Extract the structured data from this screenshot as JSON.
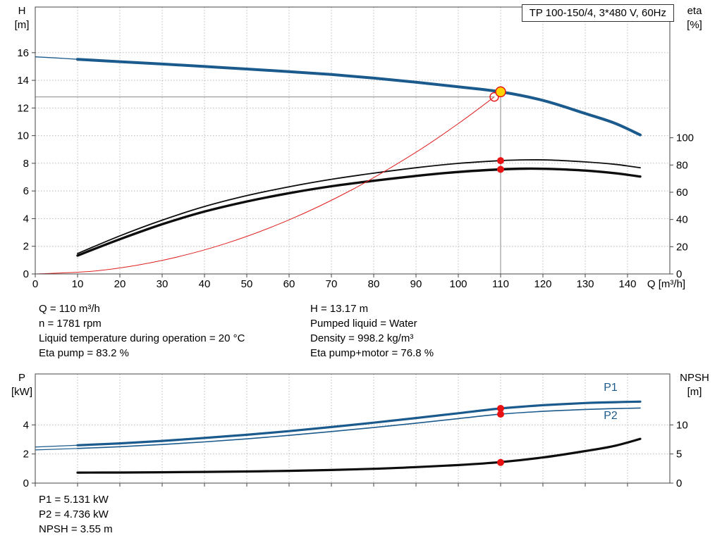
{
  "header": {
    "title": "TP 100-150/4, 3*480 V, 60Hz"
  },
  "annotations": {
    "top_left": [
      "Q = 110 m³/h",
      "n = 1781 rpm",
      "Liquid temperature during operation = 20 °C",
      "Eta pump = 83.2 %"
    ],
    "top_right": [
      "H = 13.17 m",
      "Pumped liquid = Water",
      "Density = 998.2 kg/m³",
      "Eta pump+motor = 76.8 %"
    ],
    "bottom": [
      "P1 = 5.131 kW",
      "P2 = 4.736 kW",
      "NPSH = 3.55 m"
    ]
  },
  "colors": {
    "blue": "#1b5a8c",
    "black": "#0d0d0d",
    "red": "#e02020",
    "marker_red": "#e81212",
    "marker_yellow": "#ffd400",
    "grid": "#b9b9b9",
    "axis": "#444444",
    "ref_line": "#8a8a8a"
  },
  "chart_data": [
    {
      "type": "line",
      "name": "qh-eta-chart",
      "x_axis": {
        "label": "Q [m³/h]",
        "range": [
          0,
          150
        ],
        "ticks": [
          0,
          10,
          20,
          30,
          40,
          50,
          60,
          70,
          80,
          90,
          100,
          110,
          120,
          130,
          140
        ],
        "show_labels": true
      },
      "y_left": {
        "label": "H",
        "unit": "[m]",
        "range": [
          0,
          19.3
        ],
        "ticks": [
          0,
          2,
          4,
          6,
          8,
          10,
          12,
          14,
          16
        ]
      },
      "y_right": {
        "label": "eta",
        "unit": "[%]",
        "range": [
          0,
          196
        ],
        "ticks": [
          0,
          20,
          40,
          60,
          80,
          100
        ]
      },
      "series": [
        {
          "name": "qh-curve-lead",
          "axis": "left",
          "color": "blue",
          "width": 1.3,
          "points": [
            [
              0,
              15.7
            ],
            [
              5,
              15.62
            ],
            [
              10,
              15.52
            ]
          ]
        },
        {
          "name": "qh-curve",
          "axis": "left",
          "color": "blue",
          "width": 4,
          "points": [
            [
              10,
              15.52
            ],
            [
              20,
              15.35
            ],
            [
              30,
              15.18
            ],
            [
              40,
              15.0
            ],
            [
              50,
              14.82
            ],
            [
              60,
              14.63
            ],
            [
              70,
              14.42
            ],
            [
              80,
              14.16
            ],
            [
              90,
              13.86
            ],
            [
              100,
              13.53
            ],
            [
              110,
              13.17
            ],
            [
              120,
              12.55
            ],
            [
              130,
              11.6
            ],
            [
              137,
              10.9
            ],
            [
              143,
              10.05
            ]
          ]
        },
        {
          "name": "eta-pump-curve",
          "axis": "right",
          "color": "black",
          "width": 1.8,
          "points": [
            [
              10,
              15
            ],
            [
              20,
              28
            ],
            [
              30,
              39.5
            ],
            [
              40,
              49.5
            ],
            [
              50,
              57.5
            ],
            [
              60,
              64
            ],
            [
              70,
              69.5
            ],
            [
              80,
              74
            ],
            [
              90,
              78
            ],
            [
              100,
              81.2
            ],
            [
              110,
              83.2
            ],
            [
              116,
              83.8
            ],
            [
              122,
              83.6
            ],
            [
              130,
              82.3
            ],
            [
              137,
              80.5
            ],
            [
              143,
              78
            ]
          ]
        },
        {
          "name": "eta-pump-motor-curve",
          "axis": "right",
          "color": "black",
          "width": 3.4,
          "points": [
            [
              10,
              13.5
            ],
            [
              20,
              25.5
            ],
            [
              30,
              36.5
            ],
            [
              40,
              45.8
            ],
            [
              50,
              53.2
            ],
            [
              60,
              59.3
            ],
            [
              70,
              64.4
            ],
            [
              80,
              68.4
            ],
            [
              90,
              72
            ],
            [
              100,
              74.9
            ],
            [
              110,
              76.8
            ],
            [
              116,
              77.3
            ],
            [
              122,
              77.1
            ],
            [
              130,
              75.9
            ],
            [
              137,
              74
            ],
            [
              143,
              71.5
            ]
          ]
        },
        {
          "name": "system-resistance-curve",
          "axis": "left",
          "color": "red",
          "width": 1,
          "points": [
            [
              0,
              0
            ],
            [
              15,
              0.24
            ],
            [
              30,
              0.98
            ],
            [
              45,
              2.2
            ],
            [
              60,
              3.91
            ],
            [
              75,
              6.11
            ],
            [
              90,
              8.8
            ],
            [
              100,
              10.87
            ],
            [
              108.5,
              12.8
            ]
          ]
        }
      ],
      "ref_lines": [
        {
          "name": "duty-point-vline",
          "type": "v",
          "axis": "left",
          "x": 110,
          "y_from": 0,
          "y_to": 13.17
        },
        {
          "name": "duty-point-hline",
          "type": "h",
          "axis": "left",
          "y": 12.8,
          "x_from": 0,
          "x_to": 108.5
        }
      ],
      "markers": [
        {
          "name": "requested-duty-point",
          "x": 108.5,
          "y": 12.8,
          "axis": "left",
          "style": "open-red"
        },
        {
          "name": "actual-duty-point",
          "x": 110,
          "y": 13.17,
          "axis": "left",
          "style": "yellow"
        },
        {
          "name": "eta-pump-point",
          "x": 110,
          "y": 83.2,
          "axis": "right",
          "style": "red"
        },
        {
          "name": "eta-pump-motor-point",
          "x": 110,
          "y": 76.8,
          "axis": "right",
          "style": "red"
        }
      ],
      "labels": []
    },
    {
      "type": "line",
      "name": "power-npsh-chart",
      "x_axis": {
        "label": "",
        "range": [
          0,
          150
        ],
        "ticks": [
          0,
          10,
          20,
          30,
          40,
          50,
          60,
          70,
          80,
          90,
          100,
          110,
          120,
          130,
          140
        ],
        "show_labels": false
      },
      "y_left": {
        "label": "P",
        "unit": "[kW]",
        "range": [
          0,
          7.5
        ],
        "ticks": [
          0,
          2,
          4
        ]
      },
      "y_right": {
        "label": "NPSH",
        "unit": "[m]",
        "range": [
          0,
          18.75
        ],
        "ticks": [
          0,
          5,
          10
        ]
      },
      "series": [
        {
          "name": "p1-curve-lead",
          "axis": "left",
          "color": "blue",
          "width": 1.2,
          "points": [
            [
              0,
              2.48
            ],
            [
              10,
              2.6
            ]
          ]
        },
        {
          "name": "p1-curve",
          "axis": "left",
          "color": "blue",
          "width": 3.2,
          "points": [
            [
              10,
              2.6
            ],
            [
              20,
              2.73
            ],
            [
              30,
              2.9
            ],
            [
              40,
              3.1
            ],
            [
              50,
              3.32
            ],
            [
              60,
              3.57
            ],
            [
              70,
              3.85
            ],
            [
              80,
              4.15
            ],
            [
              90,
              4.47
            ],
            [
              100,
              4.8
            ],
            [
              110,
              5.131
            ],
            [
              120,
              5.35
            ],
            [
              130,
              5.5
            ],
            [
              137,
              5.56
            ],
            [
              143,
              5.6
            ]
          ]
        },
        {
          "name": "p2-curve-lead",
          "axis": "left",
          "color": "blue",
          "width": 1.2,
          "points": [
            [
              0,
              2.28
            ],
            [
              10,
              2.38
            ]
          ]
        },
        {
          "name": "p2-curve",
          "axis": "left",
          "color": "blue",
          "width": 1.6,
          "points": [
            [
              10,
              2.38
            ],
            [
              20,
              2.5
            ],
            [
              30,
              2.65
            ],
            [
              40,
              2.83
            ],
            [
              50,
              3.04
            ],
            [
              60,
              3.28
            ],
            [
              70,
              3.54
            ],
            [
              80,
              3.82
            ],
            [
              90,
              4.12
            ],
            [
              100,
              4.43
            ],
            [
              110,
              4.736
            ],
            [
              120,
              4.93
            ],
            [
              130,
              5.06
            ],
            [
              137,
              5.12
            ],
            [
              143,
              5.16
            ]
          ]
        },
        {
          "name": "npsh-curve",
          "axis": "right",
          "color": "black",
          "width": 3.2,
          "points": [
            [
              10,
              1.8
            ],
            [
              20,
              1.82
            ],
            [
              30,
              1.86
            ],
            [
              40,
              1.92
            ],
            [
              50,
              2.0
            ],
            [
              60,
              2.1
            ],
            [
              70,
              2.25
            ],
            [
              80,
              2.45
            ],
            [
              90,
              2.75
            ],
            [
              100,
              3.1
            ],
            [
              110,
              3.6
            ],
            [
              120,
              4.4
            ],
            [
              130,
              5.5
            ],
            [
              137,
              6.4
            ],
            [
              143,
              7.6
            ]
          ]
        }
      ],
      "ref_lines": [],
      "markers": [
        {
          "name": "p1-point",
          "x": 110,
          "y": 5.131,
          "axis": "left",
          "style": "red"
        },
        {
          "name": "p2-point",
          "x": 110,
          "y": 4.736,
          "axis": "left",
          "style": "red"
        },
        {
          "name": "npsh-point",
          "x": 110,
          "y": 3.55,
          "axis": "right",
          "style": "red"
        }
      ],
      "labels": [
        {
          "name": "p1-label",
          "text": "P1",
          "x": 136,
          "y": 6.35,
          "axis": "left",
          "color": "blue"
        },
        {
          "name": "p2-label",
          "text": "P2",
          "x": 136,
          "y": 4.4,
          "axis": "left",
          "color": "blue"
        }
      ]
    }
  ]
}
